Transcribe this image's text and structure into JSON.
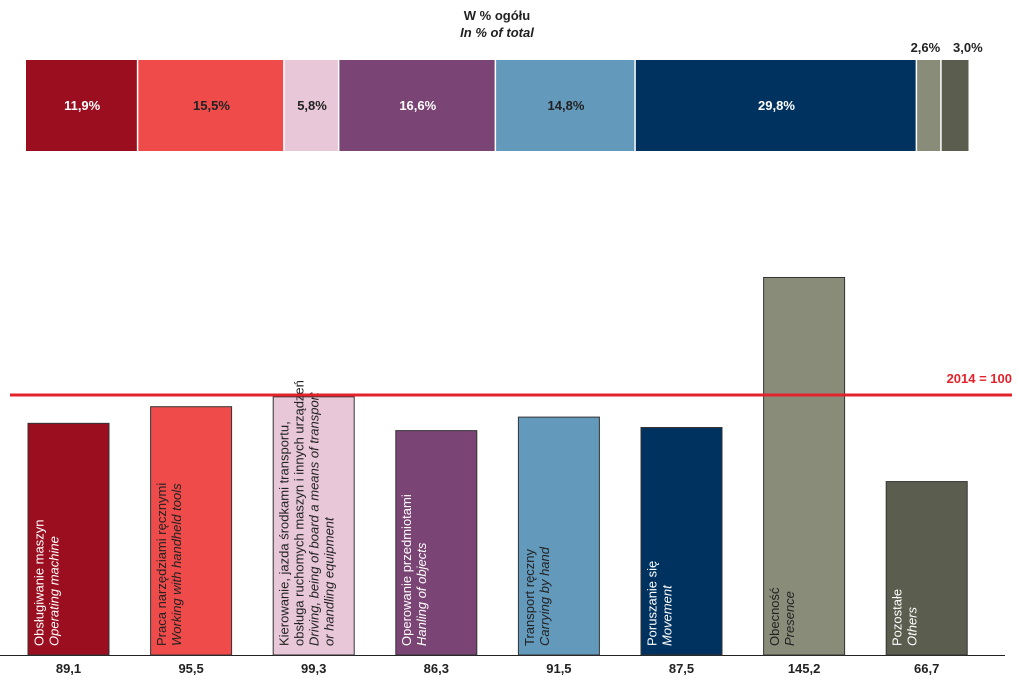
{
  "chart_data": [
    {
      "type": "stacked_bar",
      "title": "W % ogółu",
      "subtitle": "In % of total",
      "values": [
        11.9,
        15.5,
        5.8,
        16.6,
        14.8,
        29.8,
        2.6,
        3.0
      ],
      "value_labels": [
        "11,9%",
        "15,5%",
        "5,8%",
        "16,6%",
        "14,8%",
        "29,8%",
        "2,6%",
        "3,0%"
      ],
      "colors": [
        "#9b0e1f",
        "#ef4b4b",
        "#e8c7d8",
        "#7a4474",
        "#6399bb",
        "#00325f",
        "#8a8c7a",
        "#5b5e4e"
      ],
      "xlim": [
        0,
        100
      ]
    },
    {
      "type": "bar",
      "categories": [
        {
          "pl": [
            "Obsługiwanie maszyn"
          ],
          "en": [
            "Operating machine"
          ]
        },
        {
          "pl": [
            "Praca narzędziami ręcznymi"
          ],
          "en": [
            "Working with handheld tools"
          ]
        },
        {
          "pl": [
            "Kierowanie, jazda środkami transportu,",
            "obsługa ruchomych maszyn i innych urządzeń"
          ],
          "en": [
            "Driving, being of board a means of transport",
            "or handling equipment"
          ]
        },
        {
          "pl": [
            "Operowanie przedmiotami"
          ],
          "en": [
            "Hanling of objects"
          ]
        },
        {
          "pl": [
            "Transport ręczny"
          ],
          "en": [
            "Carrying by hand"
          ]
        },
        {
          "pl": [
            "Poruszanie się"
          ],
          "en": [
            "Movement"
          ]
        },
        {
          "pl": [
            "Obecność"
          ],
          "en": [
            "Presence"
          ]
        },
        {
          "pl": [
            "Pozostałe"
          ],
          "en": [
            "Others"
          ]
        }
      ],
      "values": [
        89.1,
        95.5,
        99.3,
        86.3,
        91.5,
        87.5,
        145.2,
        66.7
      ],
      "value_labels": [
        "89,1",
        "95,5",
        "99,3",
        "86,3",
        "91,5",
        "87,5",
        "145,2",
        "66,7"
      ],
      "colors": [
        "#9b0e1f",
        "#ef4b4b",
        "#e8c7d8",
        "#7a4474",
        "#6399bb",
        "#00325f",
        "#8a8c7a",
        "#5b5e4e"
      ],
      "ylim": [
        0,
        150
      ],
      "reference_line": {
        "value": 100,
        "label": "2014 = 100",
        "color": "#e3232c"
      }
    }
  ]
}
